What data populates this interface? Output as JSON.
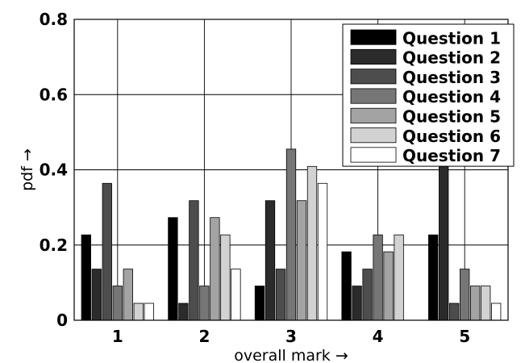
{
  "chart_data": {
    "type": "bar",
    "categories": [
      "1",
      "2",
      "3",
      "4",
      "5"
    ],
    "series": [
      {
        "name": "Question 1",
        "color": "#000000",
        "values": [
          0.227,
          0.273,
          0.091,
          0.182,
          0.227
        ]
      },
      {
        "name": "Question 2",
        "color": "#2b2b2b",
        "values": [
          0.136,
          0.045,
          0.318,
          0.091,
          0.409
        ]
      },
      {
        "name": "Question 3",
        "color": "#4d4d4d",
        "values": [
          0.364,
          0.318,
          0.136,
          0.136,
          0.045
        ]
      },
      {
        "name": "Question 4",
        "color": "#767676",
        "values": [
          0.091,
          0.091,
          0.455,
          0.227,
          0.136
        ]
      },
      {
        "name": "Question 5",
        "color": "#a3a3a3",
        "values": [
          0.136,
          0.273,
          0.318,
          0.182,
          0.091
        ]
      },
      {
        "name": "Question 6",
        "color": "#d2d2d2",
        "values": [
          0.045,
          0.227,
          0.409,
          0.227,
          0.091
        ]
      },
      {
        "name": "Question 7",
        "color": "#ffffff",
        "values": [
          0.045,
          0.136,
          0.364,
          0.0,
          0.045
        ]
      }
    ],
    "xlabel": "overall mark →",
    "ylabel": "pdf →",
    "ylim": [
      0,
      0.8
    ],
    "yticks": [
      "0",
      "0.2",
      "0.4",
      "0.6",
      "0.8"
    ],
    "grid": true,
    "legend_position": "top-right"
  }
}
